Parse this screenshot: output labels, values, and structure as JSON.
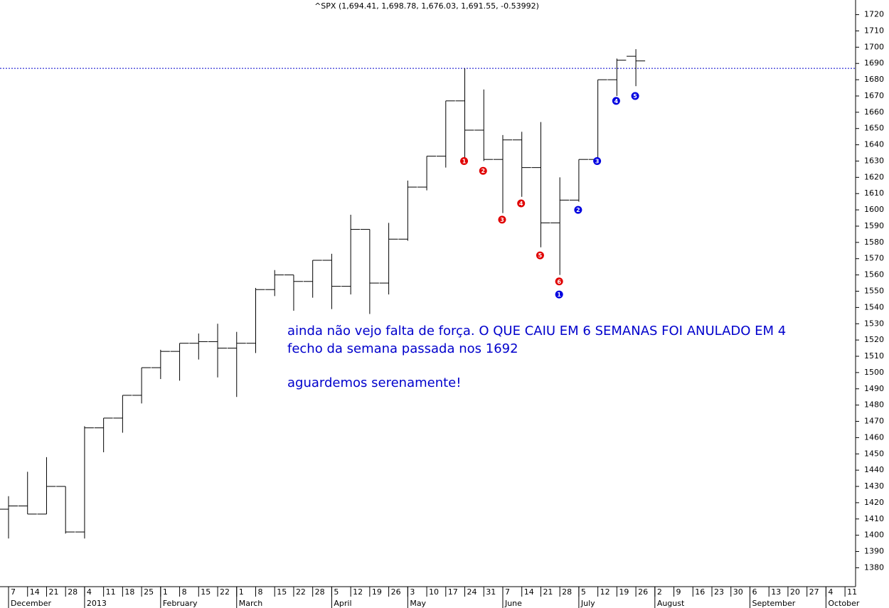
{
  "chart_data": {
    "type": "ohlc",
    "title": "^SPX (1,694.41, 1,698.78, 1,676.03, 1,691.55, -0.53992)",
    "categories": [
      "7",
      "14",
      "21",
      "28",
      "4",
      "11",
      "18",
      "25",
      "1",
      "8",
      "15",
      "22",
      "1",
      "8",
      "15",
      "22",
      "28",
      "5",
      "12",
      "19",
      "26",
      "3",
      "10",
      "17",
      "24",
      "31",
      "7",
      "14",
      "21",
      "28",
      "5",
      "12",
      "19",
      "26",
      "2",
      "9",
      "16",
      "23",
      "30",
      "6",
      "13",
      "20",
      "27",
      "4",
      "11"
    ],
    "month_labels": [
      "December",
      null,
      null,
      null,
      "2013",
      null,
      null,
      null,
      "February",
      null,
      null,
      null,
      "March",
      null,
      null,
      null,
      null,
      "April",
      null,
      null,
      null,
      "May",
      null,
      null,
      null,
      null,
      "June",
      null,
      null,
      null,
      "July",
      null,
      null,
      null,
      "August",
      null,
      null,
      null,
      null,
      "September",
      null,
      null,
      null,
      "October",
      null
    ],
    "open": [
      1416,
      1418,
      1413,
      1430,
      1402,
      1466,
      1472,
      1486,
      1503,
      1513,
      1518,
      1519,
      1515,
      1518,
      1551,
      1560,
      1556,
      1569,
      1553,
      1588,
      1555,
      1582,
      1614,
      1633,
      1667,
      1649,
      1631,
      1643,
      1626,
      1592,
      1606,
      1631,
      1680,
      1694.41,
      null,
      null,
      null,
      null,
      null,
      null,
      null,
      null,
      null,
      null,
      null
    ],
    "high": [
      1424,
      1439,
      1448,
      1430,
      1467,
      1472,
      1486,
      1503,
      1514,
      1518,
      1524,
      1530,
      1525,
      1552,
      1563,
      1560,
      1569,
      1573,
      1597,
      1588,
      1592,
      1618,
      1633,
      1667,
      1687,
      1674,
      1646,
      1648,
      1654,
      1620,
      1631,
      1680,
      1693,
      1698.78,
      null,
      null,
      null,
      null,
      null,
      null,
      null,
      null,
      null,
      null,
      null
    ],
    "low": [
      1398,
      1413,
      1413,
      1401,
      1398,
      1451,
      1463,
      1481,
      1496,
      1495,
      1508,
      1497,
      1485,
      1512,
      1547,
      1538,
      1546,
      1539,
      1548,
      1536,
      1548,
      1581,
      1612,
      1626,
      1629,
      1630,
      1598,
      1608,
      1577,
      1560,
      1605,
      1631,
      1670,
      1676.03,
      null,
      null,
      null,
      null,
      null,
      null,
      null,
      null,
      null,
      null,
      null
    ],
    "close": [
      1418,
      1413,
      1430,
      1402,
      1466,
      1472,
      1486,
      1503,
      1513,
      1518,
      1519,
      1515,
      1518,
      1551,
      1560,
      1556,
      1569,
      1553,
      1588,
      1555,
      1582,
      1614,
      1633,
      1667,
      1649,
      1631,
      1643,
      1626,
      1592,
      1606,
      1631,
      1680,
      1692,
      1691.55,
      null,
      null,
      null,
      null,
      null,
      null,
      null,
      null,
      null,
      null,
      null
    ],
    "color": "#000000",
    "ylim": [
      1371,
      1729
    ],
    "yticks": [
      1380,
      1390,
      1400,
      1410,
      1420,
      1430,
      1440,
      1450,
      1460,
      1470,
      1480,
      1490,
      1500,
      1510,
      1520,
      1530,
      1540,
      1550,
      1560,
      1570,
      1580,
      1590,
      1600,
      1610,
      1620,
      1630,
      1640,
      1650,
      1660,
      1670,
      1680,
      1690,
      1700,
      1710,
      1720
    ],
    "reference_line": {
      "value": 1687,
      "color": "#0000cc"
    },
    "markers": [
      {
        "label": "1",
        "color": "#e00000",
        "index": 24,
        "value": 1630
      },
      {
        "label": "2",
        "color": "#e00000",
        "index": 25,
        "value": 1624
      },
      {
        "label": "3",
        "color": "#e00000",
        "index": 26,
        "value": 1594
      },
      {
        "label": "4",
        "color": "#e00000",
        "index": 27,
        "value": 1604
      },
      {
        "label": "5",
        "color": "#e00000",
        "index": 28,
        "value": 1572
      },
      {
        "label": "6",
        "color": "#e00000",
        "index": 29,
        "value": 1556
      },
      {
        "label": "1",
        "color": "#0000e0",
        "index": 29,
        "value": 1548
      },
      {
        "label": "2",
        "color": "#0000e0",
        "index": 30,
        "value": 1600
      },
      {
        "label": "3",
        "color": "#0000e0",
        "index": 31,
        "value": 1630
      },
      {
        "label": "4",
        "color": "#0000e0",
        "index": 32,
        "value": 1667
      },
      {
        "label": "5",
        "color": "#0000e0",
        "index": 33,
        "value": 1670
      }
    ],
    "annotations": [
      "ainda não vejo falta de força. O QUE CAIU EM 6 SEMANAS FOI ANULADO EM 4",
      "fecho da semana passada nos 1692",
      "aguardemos serenamente!"
    ],
    "annotation_color": "#0000cc"
  }
}
